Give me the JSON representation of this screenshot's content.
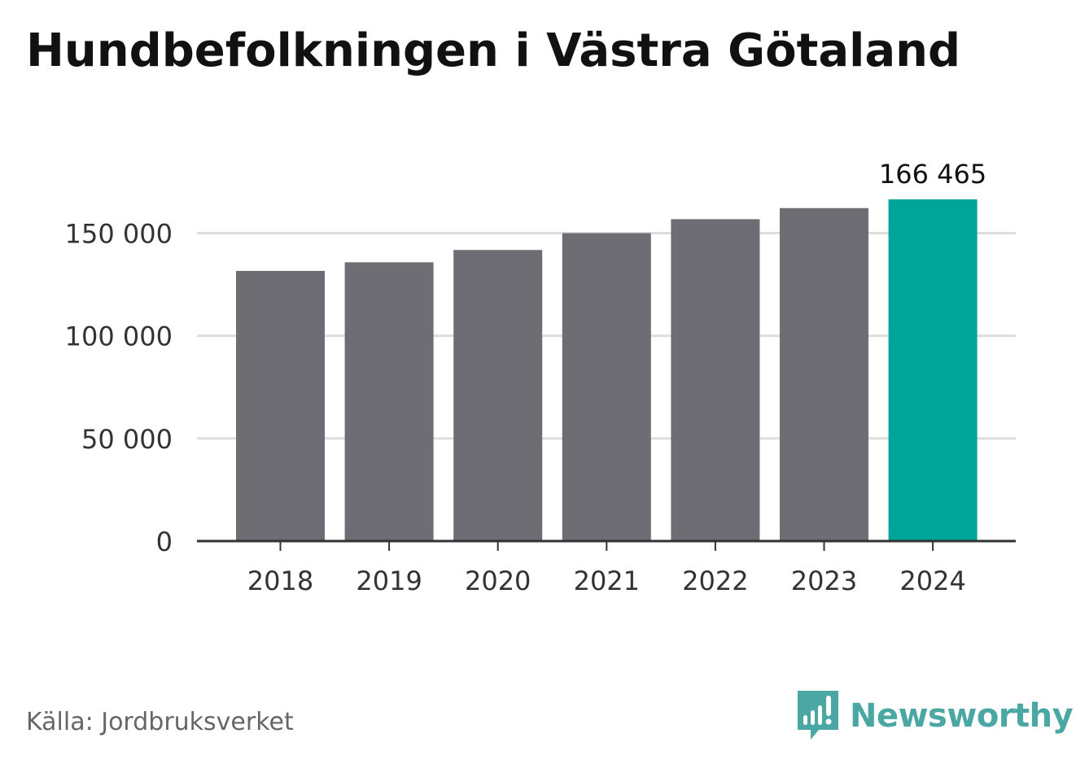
{
  "title": "Hundbefolkningen i Västra Götaland",
  "source": "Källa: Jordbruksverket",
  "brand": {
    "name": "Newsworthy",
    "icon": "newsworthy-logo-icon",
    "color": "#4aa7a3"
  },
  "colors": {
    "bar": "#6e6d73",
    "highlight": "#00a599",
    "grid": "#dddddd",
    "axis": "#333333",
    "text": "#333333"
  },
  "chart_data": {
    "type": "bar",
    "categories": [
      "2018",
      "2019",
      "2020",
      "2021",
      "2022",
      "2023",
      "2024"
    ],
    "values": [
      131600,
      135800,
      141800,
      150000,
      156800,
      162200,
      166465
    ],
    "highlight_index": 6,
    "data_labels": [
      {
        "index": 6,
        "text": "166 465"
      }
    ],
    "yticks": [
      0,
      50000,
      100000,
      150000
    ],
    "ytick_labels": [
      "0",
      "50 000",
      "100 000",
      "150 000"
    ],
    "ylim": [
      0,
      166465
    ],
    "grid": true,
    "legend": "none"
  }
}
